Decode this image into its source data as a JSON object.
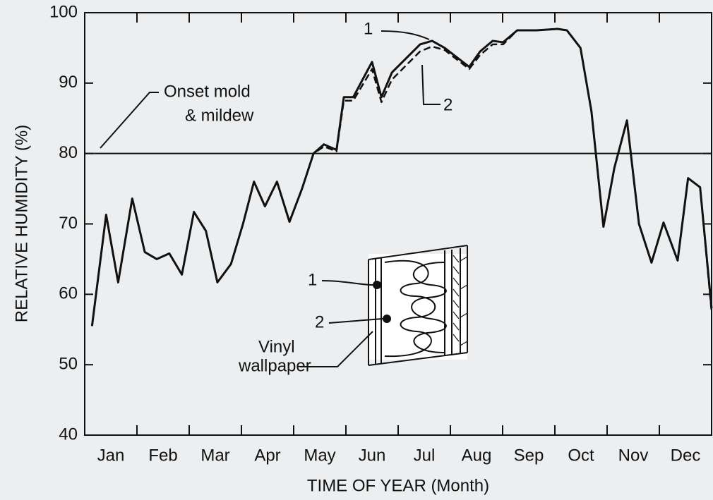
{
  "chart_data": {
    "type": "line",
    "ylabel": "RELATIVE HUMIDITY (%)",
    "xlabel": "TIME OF YEAR (Month)",
    "xlim": [
      0,
      12
    ],
    "xticks": [
      {
        "value": 0.5,
        "label": "Jan"
      },
      {
        "value": 1.5,
        "label": "Feb"
      },
      {
        "value": 2.5,
        "label": "Mar"
      },
      {
        "value": 3.5,
        "label": "Apr"
      },
      {
        "value": 4.5,
        "label": "May"
      },
      {
        "value": 5.5,
        "label": "Jun"
      },
      {
        "value": 6.5,
        "label": "Jul"
      },
      {
        "value": 7.5,
        "label": "Aug"
      },
      {
        "value": 8.5,
        "label": "Sep"
      },
      {
        "value": 9.5,
        "label": "Oct"
      },
      {
        "value": 10.5,
        "label": "Nov"
      },
      {
        "value": 11.5,
        "label": "Dec"
      }
    ],
    "xtick_marks": [
      1,
      2,
      3,
      4,
      5,
      6,
      7,
      8,
      9,
      10,
      11
    ],
    "ylim": [
      40,
      100
    ],
    "yticks": [
      40,
      50,
      60,
      70,
      80,
      90,
      100
    ],
    "threshold": 80,
    "threshold_label": [
      "Onset mold",
      "& mildew"
    ],
    "x": [
      0.14,
      0.41,
      0.64,
      0.91,
      1.15,
      1.38,
      1.62,
      1.86,
      2.09,
      2.32,
      2.54,
      2.8,
      3.03,
      3.24,
      3.45,
      3.68,
      3.92,
      4.16,
      4.38,
      4.58,
      4.82,
      4.96,
      5.14,
      5.5,
      5.68,
      5.88,
      6.42,
      6.65,
      6.89,
      7.36,
      7.57,
      7.81,
      8.01,
      8.28,
      8.65,
      9.05,
      9.23,
      9.49,
      9.7,
      9.93,
      10.14,
      10.38,
      10.61,
      10.85,
      11.08,
      11.35,
      11.55,
      11.78,
      12.0
    ],
    "series": [
      {
        "name": "1",
        "color": "#111111",
        "dash": false,
        "values": [
          55.5,
          71.3,
          61.7,
          73.6,
          66,
          65,
          65.8,
          62.8,
          71.7,
          69,
          61.7,
          64.3,
          70,
          76,
          72.5,
          76,
          70.3,
          75,
          80,
          81.3,
          80.5,
          88,
          88,
          93,
          88,
          91.5,
          95.5,
          96,
          95,
          92.3,
          94.5,
          96,
          95.8,
          97.5,
          97.5,
          97.7,
          97.5,
          95,
          86,
          69.6,
          78,
          84.7,
          70,
          64.5,
          70.2,
          64.8,
          76.5,
          75.2,
          58
        ]
      },
      {
        "name": "2",
        "color": "#111111",
        "dash": true,
        "values": [
          55.5,
          71.3,
          61.7,
          73.6,
          66,
          65,
          65.8,
          62.8,
          71.7,
          69,
          61.7,
          64.3,
          70,
          76,
          72.5,
          76,
          70.3,
          75,
          80,
          81,
          80.3,
          87.5,
          87.5,
          92,
          87.3,
          90.5,
          94.5,
          95.2,
          94.7,
          92,
          94,
          95.5,
          95.5,
          97.5,
          97.5,
          97.7,
          97.5,
          95,
          86,
          69.6,
          78,
          84.7,
          70,
          64.5,
          70.2,
          64.8,
          76.5,
          75.2,
          57.5
        ]
      }
    ],
    "inset": {
      "labels": [
        "1",
        "2"
      ],
      "material": [
        "Vinyl",
        "wallpaper"
      ]
    }
  }
}
